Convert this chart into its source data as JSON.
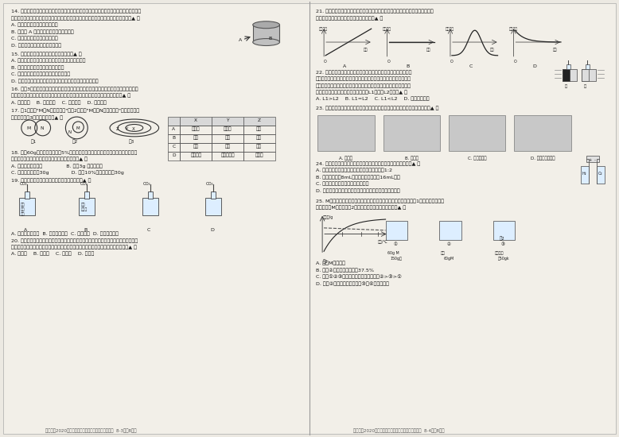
{
  "page_bg": "#f5f5f0",
  "text_color": "#222222",
  "border_color": "#999999",
  "page_label_left": "高风中学2020学年第二学期总分竞赛七年级科学试题卷  8-3（共8页）",
  "page_label_right": "高风中学2020学年第二学期总分竞赛七年级科学试题卷  8-4（共8页）",
  "table_headers": [
    "",
    "X",
    "Y",
    "Z"
  ],
  "table_rows": [
    [
      "A",
      "悬浊液",
      "乳浊液",
      "溶液"
    ],
    [
      "B",
      "溶液",
      "溶剂",
      "溶质"
    ],
    [
      "C",
      "蒸发",
      "蒸馏",
      "液化"
    ],
    [
      "D",
      "饱和溶液",
      "不饱和溶液",
      "混合液"
    ]
  ],
  "graph_xtitles": [
    "时间",
    "时间",
    "时间",
    "时间"
  ],
  "graph_ytitles": [
    "稻虫数量",
    "稻虫数量",
    "稻虫数量",
    "稻虫数量"
  ],
  "conclusion_list": [
    "A. 物质M是硫酸铜",
    "B. 溶液②中溶质质量分数为37.5%",
    "C. 溶液①②③中，溶质质量分数的关系是②>③>①",
    "D. 溶液②为不饱和溶液，溶液③和④为饱和溶液"
  ]
}
